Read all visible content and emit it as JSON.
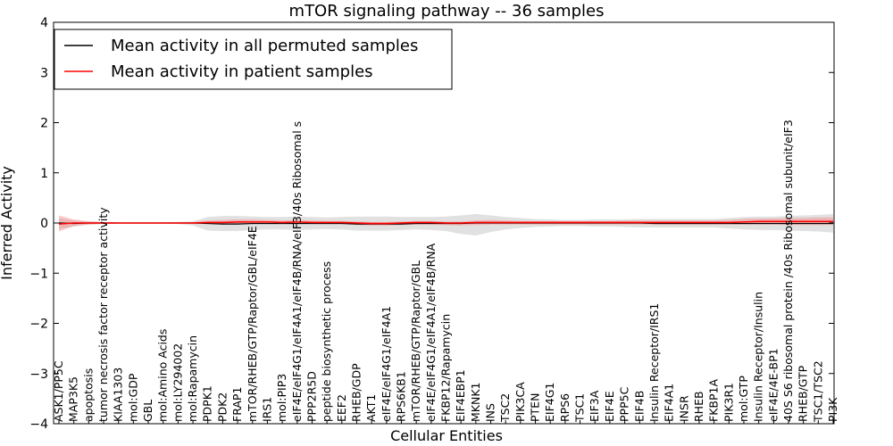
{
  "chart_data": {
    "type": "line",
    "title": "mTOR signaling pathway -- 36 samples",
    "xlabel": "Cellular Entities",
    "ylabel": "Inferred Activity",
    "ylim": [
      -4,
      4
    ],
    "yticks": [
      -4,
      -3,
      -2,
      -1,
      0,
      1,
      2,
      3,
      4
    ],
    "ytick_labels": [
      "−4",
      "−3",
      "−2",
      "−1",
      "0",
      "1",
      "2",
      "3",
      "4"
    ],
    "grid": false,
    "legend_position": "top-left",
    "categories": [
      "ASK1/PP5C",
      "MAP3K5",
      "apoptosis",
      "tumor necrosis factor receptor activity",
      "KIAA1303",
      "mol:GDP",
      "GBL",
      "mol:Amino Acids",
      "mol:LY294002",
      "mol:Rapamycin",
      "PDPK1",
      "PDK2",
      "FRAP1",
      "mTOR/RHEB/GTP/Raptor/GBL/eIF4E",
      "IRS1",
      "mol:PIP3",
      "eIF4E/eIF4G1/eIF4A1/eIF4B/RNA/eIF3/40s Ribosomal s",
      "PPP2R5D",
      "peptide biosynthetic process",
      "EEF2",
      "RHEB/GDP",
      "AKT1",
      "eIF4E/eIF4G1/eIF4A1",
      "RPS6KB1",
      "mTOR/RHEB/GTP/Raptor/GBL",
      "eIF4E/eIF4G1/eIF4A1/eIF4B/RNA",
      "FKBP12/Rapamycin",
      "EIF4EBP1",
      "MKNK1",
      "INS",
      "TSC2",
      "PIK3CA",
      "PTEN",
      "EIF4G1",
      "RPS6",
      "TSC1",
      "EIF3A",
      "EIF4E",
      "PPP5C",
      "EIF4B",
      "Insulin Receptor/IRS1",
      "EIF4A1",
      "INSR",
      "RHEB",
      "FKBP1A",
      "PIK3R1",
      "mol:GTP",
      "Insulin Receptor/Insulin",
      "eIF4E/4E-BP1",
      "40S S6 ribosomal protein /40s Ribosomal subunit/eIF3",
      "RHEB/GTP",
      "TSC1/TSC2",
      "PI3K"
    ],
    "series": [
      {
        "name": "Mean activity in all permuted samples",
        "color": "#000000",
        "values": [
          0,
          -0.01,
          0,
          0,
          0,
          0,
          0,
          0,
          0,
          0,
          -0.01,
          -0.02,
          -0.02,
          -0.01,
          -0.01,
          -0.01,
          -0.01,
          -0.01,
          -0.01,
          -0.01,
          -0.02,
          -0.02,
          -0.02,
          -0.02,
          -0.01,
          -0.01,
          -0.01,
          -0.01,
          0,
          0,
          0,
          0,
          0,
          0,
          0,
          0,
          0,
          0,
          0,
          0,
          -0.01,
          -0.01,
          -0.01,
          -0.01,
          -0.01,
          -0.01,
          -0.01,
          -0.01,
          -0.01,
          -0.01,
          -0.01,
          -0.01,
          -0.01
        ],
        "band_upper": [
          0.1,
          0.05,
          0.03,
          0.02,
          0.01,
          0.01,
          0.01,
          0.01,
          0.02,
          0.03,
          0.12,
          0.14,
          0.14,
          0.13,
          0.12,
          0.12,
          0.13,
          0.12,
          0.11,
          0.12,
          0.13,
          0.13,
          0.13,
          0.12,
          0.12,
          0.12,
          0.13,
          0.15,
          0.18,
          0.15,
          0.12,
          0.1,
          0.08,
          0.07,
          0.06,
          0.06,
          0.07,
          0.07,
          0.07,
          0.08,
          0.08,
          0.08,
          0.08,
          0.08,
          0.08,
          0.1,
          0.12,
          0.13,
          0.13,
          0.14,
          0.15,
          0.16,
          0.18
        ],
        "band_lower": [
          -0.12,
          -0.07,
          -0.03,
          -0.02,
          -0.01,
          -0.01,
          -0.01,
          -0.01,
          -0.02,
          -0.05,
          -0.15,
          -0.16,
          -0.16,
          -0.14,
          -0.13,
          -0.13,
          -0.14,
          -0.13,
          -0.12,
          -0.13,
          -0.15,
          -0.15,
          -0.15,
          -0.14,
          -0.13,
          -0.14,
          -0.16,
          -0.22,
          -0.25,
          -0.18,
          -0.13,
          -0.1,
          -0.08,
          -0.07,
          -0.06,
          -0.06,
          -0.07,
          -0.07,
          -0.08,
          -0.09,
          -0.09,
          -0.09,
          -0.09,
          -0.09,
          -0.09,
          -0.11,
          -0.13,
          -0.14,
          -0.14,
          -0.15,
          -0.16,
          -0.17,
          -0.19
        ]
      },
      {
        "name": "Mean activity in patient samples",
        "color": "#ff0000",
        "values": [
          -0.02,
          0,
          0,
          0,
          0,
          0,
          0,
          0,
          0,
          0,
          0.01,
          0.01,
          0.02,
          0.02,
          0.02,
          0.01,
          0.02,
          0.01,
          0.01,
          0.01,
          0,
          -0.01,
          -0.01,
          0,
          0.01,
          0.01,
          0,
          0,
          0.01,
          0.01,
          0.01,
          0.01,
          0.01,
          0.01,
          0.01,
          0.01,
          0.01,
          0.01,
          0.01,
          0.01,
          0.01,
          0.01,
          0.01,
          0.01,
          0.01,
          0.01,
          0.02,
          0.03,
          0.03,
          0.03,
          0.03,
          0.03,
          0.03
        ],
        "band_upper": [
          0.15,
          0.07,
          0.03,
          0.02,
          0.01,
          0.01,
          0.01,
          0.01,
          0.01,
          0.02,
          0.05,
          0.06,
          0.07,
          0.07,
          0.06,
          0.05,
          0.06,
          0.05,
          0.04,
          0.04,
          0.03,
          0.02,
          0.02,
          0.03,
          0.04,
          0.04,
          0.03,
          0.03,
          0.05,
          0.06,
          0.05,
          0.04,
          0.04,
          0.04,
          0.04,
          0.04,
          0.04,
          0.04,
          0.05,
          0.05,
          0.05,
          0.05,
          0.05,
          0.05,
          0.05,
          0.06,
          0.08,
          0.09,
          0.09,
          0.1,
          0.1,
          0.11,
          0.11
        ],
        "band_lower": [
          -0.17,
          -0.06,
          -0.03,
          -0.02,
          -0.01,
          -0.01,
          -0.01,
          -0.01,
          -0.01,
          -0.02,
          -0.02,
          -0.03,
          -0.03,
          -0.02,
          -0.02,
          -0.02,
          -0.02,
          -0.02,
          -0.02,
          -0.02,
          -0.04,
          -0.05,
          -0.05,
          -0.04,
          -0.03,
          -0.03,
          -0.04,
          -0.05,
          -0.04,
          -0.03,
          -0.03,
          -0.03,
          -0.03,
          -0.03,
          -0.03,
          -0.03,
          -0.03,
          -0.03,
          -0.03,
          -0.03,
          -0.03,
          -0.03,
          -0.03,
          -0.03,
          -0.03,
          -0.03,
          -0.03,
          -0.03,
          -0.03,
          -0.04,
          -0.04,
          -0.04,
          -0.04
        ]
      }
    ]
  }
}
